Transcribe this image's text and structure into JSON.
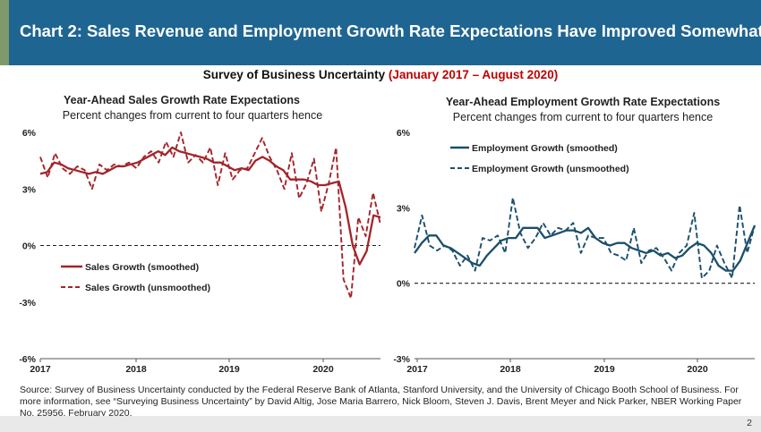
{
  "header": {
    "title": "Chart 2: Sales Revenue and Employment Growth Rate Expectations Have Improved Somewhat",
    "subtitle_main": "Survey of Business Uncertainty ",
    "subtitle_dates": "(January 2017 – August 2020)"
  },
  "colors": {
    "sales": "#a3242b",
    "employment": "#1b4f6b",
    "title_bar": "#1f6591"
  },
  "chart_data": [
    {
      "type": "line",
      "title": "Year-Ahead Sales Growth Rate Expectations",
      "subtitle": "Percent changes from current to four quarters hence",
      "ylim": [
        -6,
        6
      ],
      "yticks": [
        "6%",
        "3%",
        "0%",
        "-3%",
        "-6%"
      ],
      "xticks": [
        "2017",
        "2018",
        "2019",
        "2020"
      ],
      "legend_position": "bottom-left",
      "series": [
        {
          "name": "Sales Growth (smoothed)",
          "style": "solid",
          "values": [
            3.8,
            3.9,
            4.4,
            4.3,
            4.1,
            4.0,
            3.9,
            3.8,
            3.9,
            3.8,
            4.0,
            4.2,
            4.2,
            4.3,
            4.4,
            4.6,
            4.8,
            5.0,
            4.8,
            5.2,
            5.0,
            4.9,
            4.8,
            4.7,
            4.6,
            4.4,
            4.4,
            4.2,
            4.0,
            4.1,
            4.0,
            4.5,
            4.7,
            4.5,
            4.2,
            4.0,
            3.5,
            3.5,
            3.5,
            3.4,
            3.2,
            3.2,
            3.3,
            3.4,
            2.0,
            0.0,
            -1.0,
            -0.3,
            1.6,
            1.5
          ]
        },
        {
          "name": "Sales Growth (unsmoothed)",
          "style": "dashed",
          "values": [
            4.7,
            3.6,
            4.9,
            4.1,
            3.8,
            4.2,
            4.0,
            3.0,
            4.3,
            4.0,
            4.3,
            4.2,
            4.4,
            4.1,
            4.7,
            5.0,
            4.4,
            5.5,
            4.7,
            6.0,
            4.4,
            4.8,
            4.4,
            5.2,
            3.2,
            4.9,
            3.5,
            4.0,
            4.1,
            4.9,
            5.7,
            4.7,
            4.0,
            3.0,
            4.9,
            2.5,
            3.3,
            4.6,
            1.8,
            3.3,
            5.2,
            -1.8,
            -2.8,
            1.5,
            0.5,
            2.8,
            1.1
          ]
        }
      ]
    },
    {
      "type": "line",
      "title": "Year-Ahead Employment Growth Rate Expectations",
      "subtitle": "Percent changes from current to four quarters hence",
      "ylim": [
        -3,
        6
      ],
      "yticks": [
        "6%",
        "3%",
        "0%",
        "-3%"
      ],
      "xticks": [
        "2017",
        "2018",
        "2019",
        "2020"
      ],
      "legend_position": "top-left",
      "series": [
        {
          "name": "Employment Growth (smoothed)",
          "style": "solid",
          "values": [
            1.2,
            1.6,
            1.9,
            1.9,
            1.5,
            1.4,
            1.2,
            1.0,
            0.8,
            0.7,
            1.1,
            1.4,
            1.7,
            1.8,
            1.8,
            2.2,
            2.2,
            2.2,
            1.8,
            1.9,
            2.0,
            2.1,
            2.1,
            2.0,
            2.2,
            1.8,
            1.6,
            1.5,
            1.6,
            1.6,
            1.4,
            1.3,
            1.2,
            1.3,
            1.1,
            1.2,
            1.0,
            1.1,
            1.4,
            1.6,
            1.5,
            1.2,
            0.7,
            0.5,
            0.5,
            0.9,
            1.6,
            2.3
          ]
        },
        {
          "name": "Employment Growth (unsmoothed)",
          "style": "dashed",
          "values": [
            1.4,
            2.7,
            1.5,
            1.3,
            1.5,
            1.3,
            0.7,
            1.1,
            0.5,
            1.8,
            1.7,
            1.9,
            1.2,
            3.4,
            2.0,
            1.4,
            1.8,
            2.4,
            1.9,
            2.2,
            2.1,
            2.4,
            1.2,
            1.9,
            1.8,
            1.8,
            1.2,
            1.1,
            0.9,
            2.2,
            0.8,
            1.3,
            1.4,
            1.0,
            0.5,
            1.2,
            1.5,
            2.8,
            0.2,
            0.5,
            1.5,
            0.8,
            0.2,
            3.1,
            1.2,
            2.3
          ]
        }
      ]
    }
  ],
  "source": "Source: Survey of Business Uncertainty conducted by the Federal Reserve Bank of Atlanta, Stanford University, and the University of Chicago Booth School of Business. For more information, see “Surveying Business Uncertainty” by David Altig, Jose Maria Barrero, Nick Bloom, Steven J. Davis, Brent Meyer and Nick Parker, NBER Working Paper No. 25956, February 2020.",
  "page_number": "2"
}
